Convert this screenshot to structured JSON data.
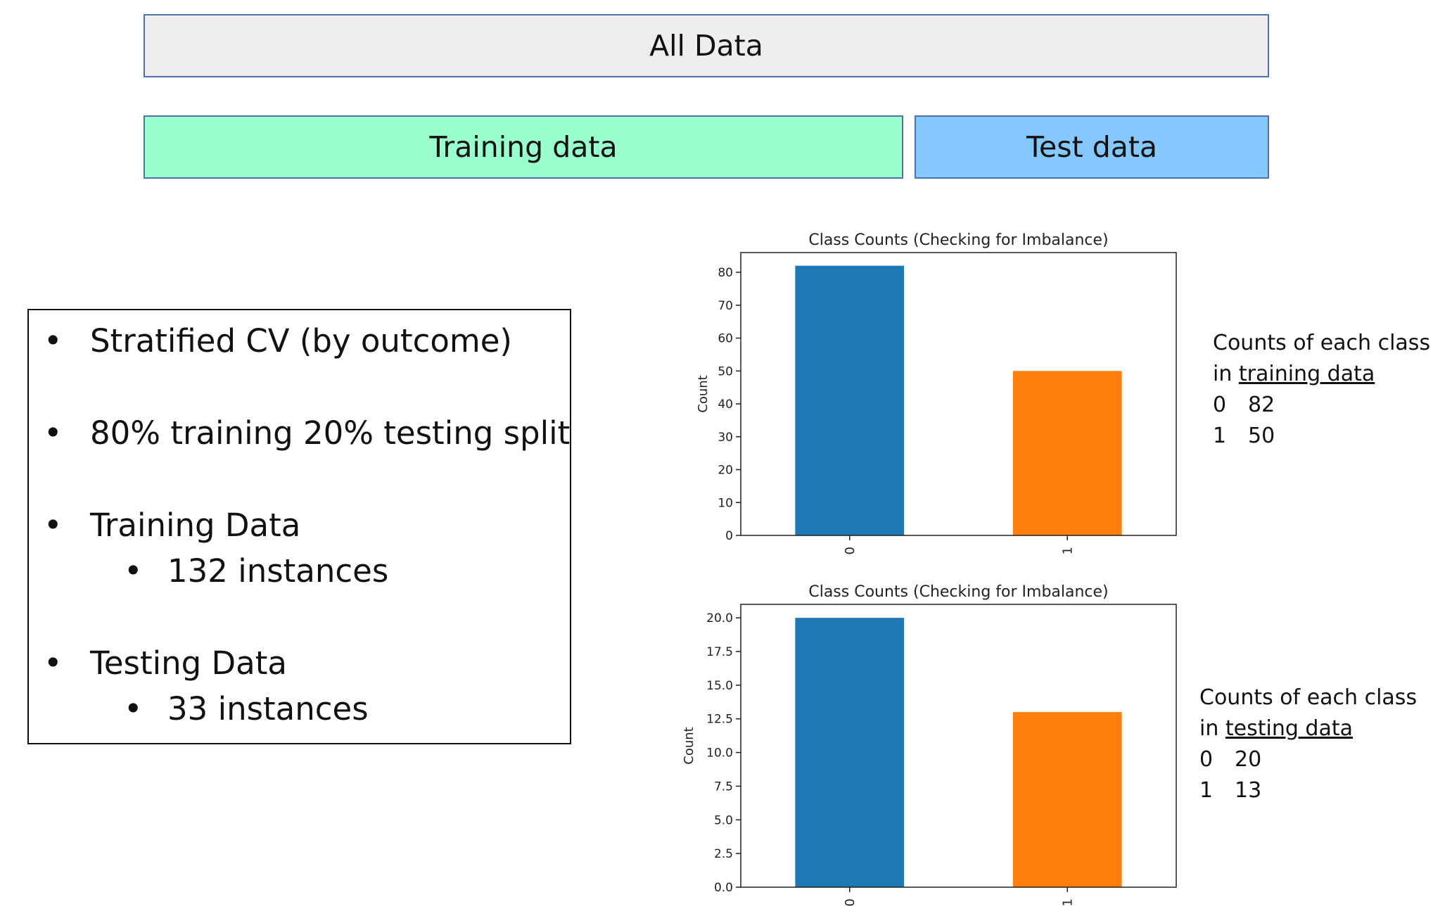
{
  "split": {
    "all_data": "All Data",
    "training": "Training data",
    "test": "Test data",
    "colors": {
      "all": "#eeeeee",
      "training": "#99ffcc",
      "test": "#84c8ff"
    }
  },
  "info": {
    "bullets": [
      {
        "text": "Stratified CV (by outcome)"
      },
      {
        "text": "80% training 20% testing split"
      },
      {
        "text": "Training Data",
        "sub": "132 instances"
      },
      {
        "text": "Testing Data",
        "sub": "33 instances"
      }
    ]
  },
  "chart_data": [
    {
      "type": "bar",
      "title": "Class Counts (Checking for Imbalance)",
      "ylabel": "Count",
      "xlabel": "",
      "categories": [
        "0",
        "1"
      ],
      "values": [
        82,
        50
      ],
      "ylim": [
        0,
        86
      ],
      "yticks": [
        "0",
        "10",
        "20",
        "30",
        "40",
        "50",
        "60",
        "70",
        "80"
      ],
      "colors": [
        "#1f77b4",
        "#ff7f0e"
      ]
    },
    {
      "type": "bar",
      "title": "Class Counts (Checking for Imbalance)",
      "ylabel": "Count",
      "xlabel": "",
      "categories": [
        "0",
        "1"
      ],
      "values": [
        20,
        13
      ],
      "ylim": [
        0,
        21
      ],
      "yticks": [
        "0.0",
        "2.5",
        "5.0",
        "7.5",
        "10.0",
        "12.5",
        "15.0",
        "17.5",
        "20.0"
      ],
      "colors": [
        "#1f77b4",
        "#ff7f0e"
      ]
    }
  ],
  "counts": [
    {
      "line1": "Counts of each class",
      "prefix": "in ",
      "underlined": "training data",
      "rows": [
        [
          "0",
          "82"
        ],
        [
          "1",
          "50"
        ]
      ]
    },
    {
      "line1": "Counts of each class",
      "prefix": "in ",
      "underlined": "testing data",
      "rows": [
        [
          "0",
          "20"
        ],
        [
          "1",
          "13"
        ]
      ]
    }
  ]
}
